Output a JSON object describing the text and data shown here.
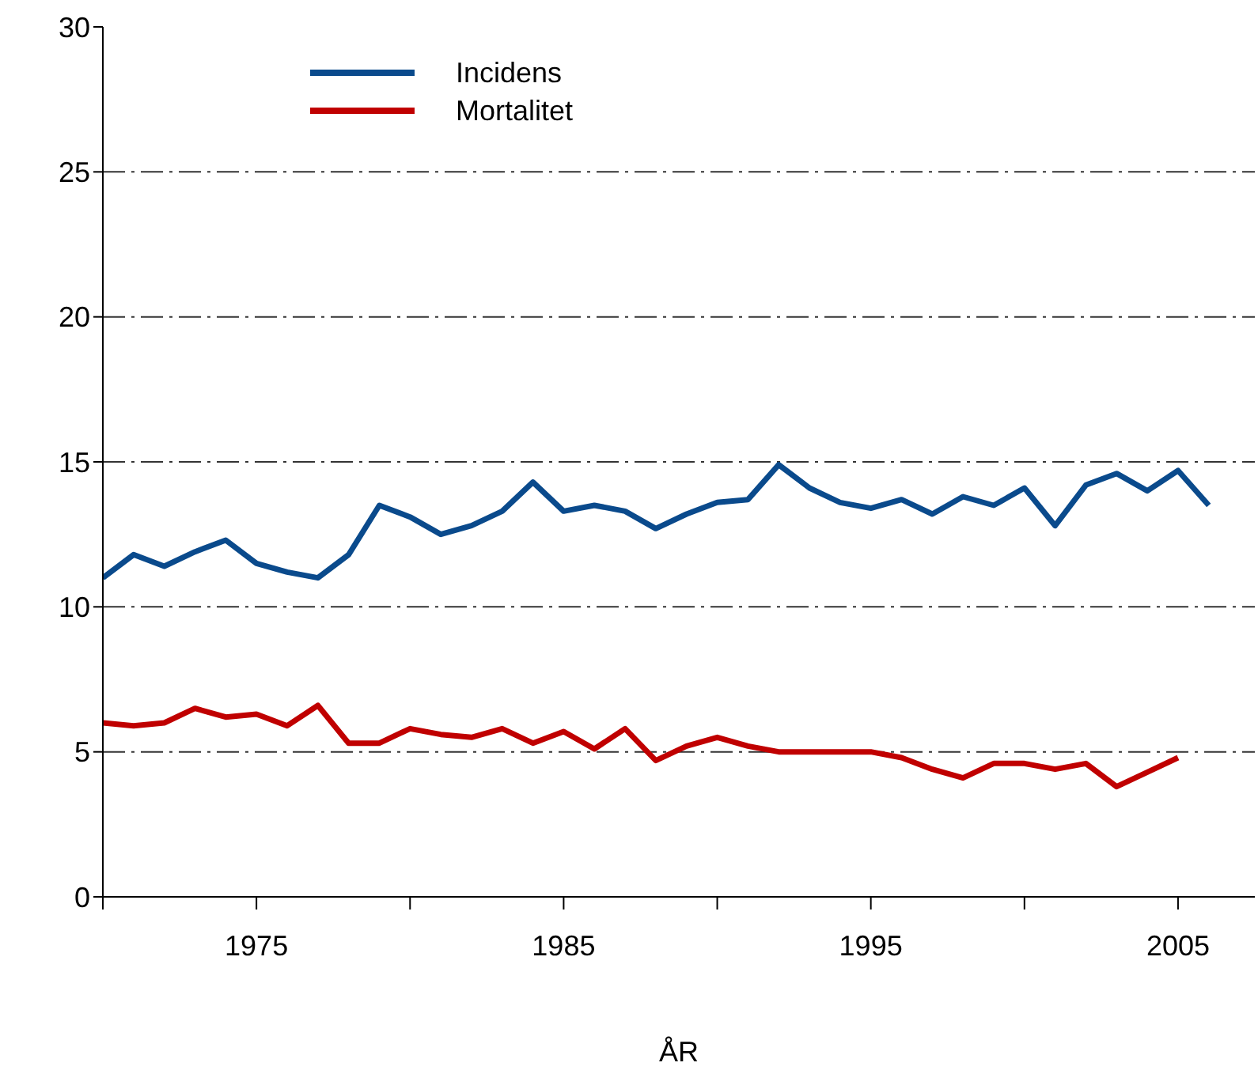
{
  "chart_data": {
    "type": "line",
    "xlabel": "ÅR",
    "x": [
      1970,
      1971,
      1972,
      1973,
      1974,
      1975,
      1976,
      1977,
      1978,
      1979,
      1980,
      1981,
      1982,
      1983,
      1984,
      1985,
      1986,
      1987,
      1988,
      1989,
      1990,
      1991,
      1992,
      1993,
      1994,
      1995,
      1996,
      1997,
      1998,
      1999,
      2000,
      2001,
      2002,
      2003,
      2004,
      2005,
      2006
    ],
    "series": [
      {
        "name": "Incidens",
        "color": "#0a4a8c",
        "values": [
          11.0,
          11.8,
          11.4,
          11.9,
          12.3,
          11.5,
          11.2,
          11.0,
          11.8,
          13.5,
          13.1,
          12.5,
          12.8,
          13.3,
          14.3,
          13.3,
          13.5,
          13.3,
          12.7,
          13.2,
          13.6,
          13.7,
          14.9,
          14.1,
          13.6,
          13.4,
          13.7,
          13.2,
          13.8,
          13.5,
          14.1,
          12.8,
          14.2,
          14.6,
          14.0,
          14.7,
          13.5
        ]
      },
      {
        "name": "Mortalitet",
        "color": "#c00000",
        "values": [
          6.0,
          5.9,
          6.0,
          6.5,
          6.2,
          6.3,
          5.9,
          6.6,
          5.3,
          5.3,
          5.8,
          5.6,
          5.5,
          5.8,
          5.3,
          5.7,
          5.1,
          5.8,
          4.7,
          5.2,
          5.5,
          5.2,
          5.0,
          5.0,
          5.0,
          5.0,
          4.8,
          4.4,
          4.1,
          4.6,
          4.6,
          4.4,
          4.6,
          3.8,
          4.3,
          4.8,
          null
        ]
      }
    ],
    "xlim": [
      1970,
      2007.5
    ],
    "xticks": [
      {
        "value": 1970,
        "label": null
      },
      1975,
      {
        "value": 1980,
        "label": null
      },
      1985,
      {
        "value": 1990,
        "label": null
      },
      1995,
      {
        "value": 2000,
        "label": null
      },
      2005
    ],
    "ylim": [
      0,
      30
    ],
    "yticks": [
      0,
      5,
      10,
      15,
      20,
      25,
      30
    ],
    "grid": "y",
    "legend": "top left",
    "marker": "none",
    "line_style": "solid"
  }
}
